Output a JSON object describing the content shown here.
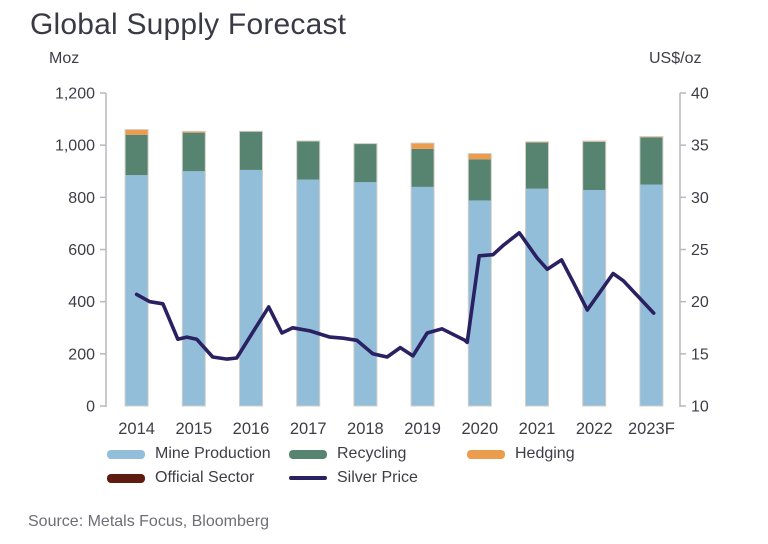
{
  "title": "Global Supply Forecast",
  "source": "Source: Metals Focus, Bloomberg",
  "colors": {
    "mine_production": "#93bed9",
    "recycling": "#568471",
    "hedging": "#ec9c4d",
    "official_sector": "#5e1c10",
    "silver_price": "#2a2162",
    "axis_line": "#b9b9bd",
    "text": "#3d3d46",
    "title_text": "#3a3a46",
    "source_text": "#6e6e74",
    "bar_outline": "#d3cec6"
  },
  "chart_data": {
    "type": "bar",
    "subtype": "stacked-bar-with-line-dual-axis",
    "title": "Global Supply Forecast",
    "grid": false,
    "legend_position": "bottom",
    "categories": [
      "2014",
      "2015",
      "2016",
      "2017",
      "2018",
      "2019",
      "2020",
      "2021",
      "2022",
      "2023F"
    ],
    "left_axis": {
      "label": "Moz",
      "min": 0,
      "max": 1200,
      "step": 200,
      "tick_labels": [
        "0",
        "200",
        "400",
        "600",
        "800",
        "1,000",
        "1,200"
      ]
    },
    "right_axis": {
      "label": "US$/oz",
      "min": 10,
      "max": 40,
      "step": 5,
      "tick_labels": [
        "10",
        "15",
        "20",
        "25",
        "30",
        "35",
        "40"
      ]
    },
    "series": [
      {
        "name": "Mine Production",
        "type": "bar",
        "axis": "left",
        "color_key": "mine_production",
        "values": [
          885,
          900,
          905,
          868,
          858,
          840,
          788,
          833,
          828,
          849
        ]
      },
      {
        "name": "Recycling",
        "type": "bar",
        "axis": "left",
        "color_key": "recycling",
        "values": [
          155,
          148,
          148,
          148,
          148,
          146,
          158,
          177,
          185,
          181
        ]
      },
      {
        "name": "Hedging",
        "type": "bar",
        "axis": "left",
        "color_key": "hedging",
        "values": [
          20,
          5,
          0,
          0,
          0,
          22,
          22,
          3,
          3,
          3
        ]
      },
      {
        "name": "Official Sector",
        "type": "bar",
        "axis": "left",
        "color_key": "official_sector",
        "values": [
          0,
          0,
          0,
          0,
          0,
          0,
          0,
          0,
          0,
          0
        ]
      },
      {
        "name": "Silver Price",
        "type": "line",
        "axis": "right",
        "color_key": "silver_price",
        "points": [
          [
            2014.0,
            20.7
          ],
          [
            2014.23,
            20.0
          ],
          [
            2014.46,
            19.8
          ],
          [
            2014.72,
            16.4
          ],
          [
            2014.88,
            16.6
          ],
          [
            2015.05,
            16.4
          ],
          [
            2015.33,
            14.7
          ],
          [
            2015.58,
            14.5
          ],
          [
            2015.75,
            14.6
          ],
          [
            2016.31,
            19.5
          ],
          [
            2016.54,
            17.0
          ],
          [
            2016.73,
            17.5
          ],
          [
            2017.03,
            17.2
          ],
          [
            2017.38,
            16.6
          ],
          [
            2017.61,
            16.5
          ],
          [
            2017.85,
            16.3
          ],
          [
            2018.13,
            15.0
          ],
          [
            2018.38,
            14.7
          ],
          [
            2018.61,
            15.6
          ],
          [
            2018.83,
            14.8
          ],
          [
            2019.08,
            17.0
          ],
          [
            2019.34,
            17.4
          ],
          [
            2019.74,
            16.3
          ],
          [
            2019.78,
            16.1
          ],
          [
            2019.99,
            24.4
          ],
          [
            2020.23,
            24.5
          ],
          [
            2020.41,
            25.4
          ],
          [
            2020.69,
            26.6
          ],
          [
            2021.0,
            24.2
          ],
          [
            2021.18,
            23.1
          ],
          [
            2021.43,
            24.0
          ],
          [
            2021.64,
            21.8
          ],
          [
            2021.88,
            19.2
          ],
          [
            2022.33,
            22.7
          ],
          [
            2022.51,
            22.0
          ],
          [
            2023.04,
            18.9
          ]
        ]
      }
    ]
  }
}
